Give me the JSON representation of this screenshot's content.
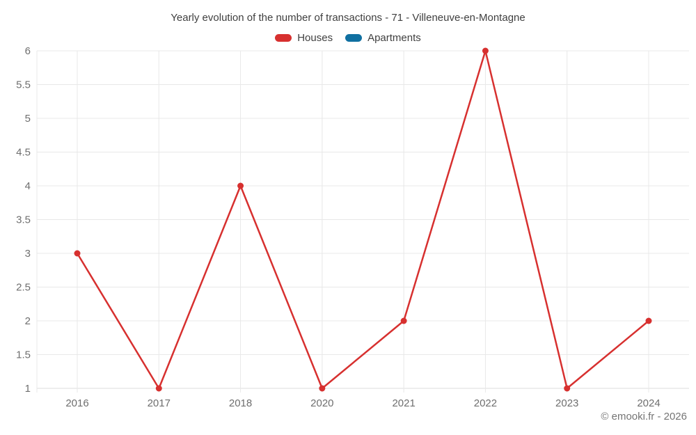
{
  "title": "Yearly evolution of the number of transactions - 71 - Villeneuve-en-Montagne",
  "footer": "© emooki.fr - 2026",
  "legend": {
    "items": [
      {
        "label": "Houses",
        "color": "#d7302f"
      },
      {
        "label": "Apartments",
        "color": "#1070a1"
      }
    ]
  },
  "chart_data": {
    "type": "line",
    "title": "Yearly evolution of the number of transactions - 71 - Villeneuve-en-Montagne",
    "categories": [
      "2016",
      "2017",
      "2018",
      "2020",
      "2021",
      "2022",
      "2023",
      "2024"
    ],
    "series": [
      {
        "name": "Houses",
        "color": "#d7302f",
        "values": [
          3,
          1,
          4,
          1,
          2,
          6,
          1,
          2
        ]
      },
      {
        "name": "Apartments",
        "color": "#1070a1",
        "values": []
      }
    ],
    "xlabel": "",
    "ylabel": "",
    "ylim": [
      1,
      6
    ],
    "ytick_step": 0.5,
    "grid": true,
    "legend_position": "top"
  },
  "colors": {
    "background": "#ffffff",
    "grid": "#e8e8e8",
    "axis_line": "#dedede",
    "axis_text": "#6e6e6e",
    "title_text": "#3f3f3f",
    "footer_text": "#757575"
  }
}
